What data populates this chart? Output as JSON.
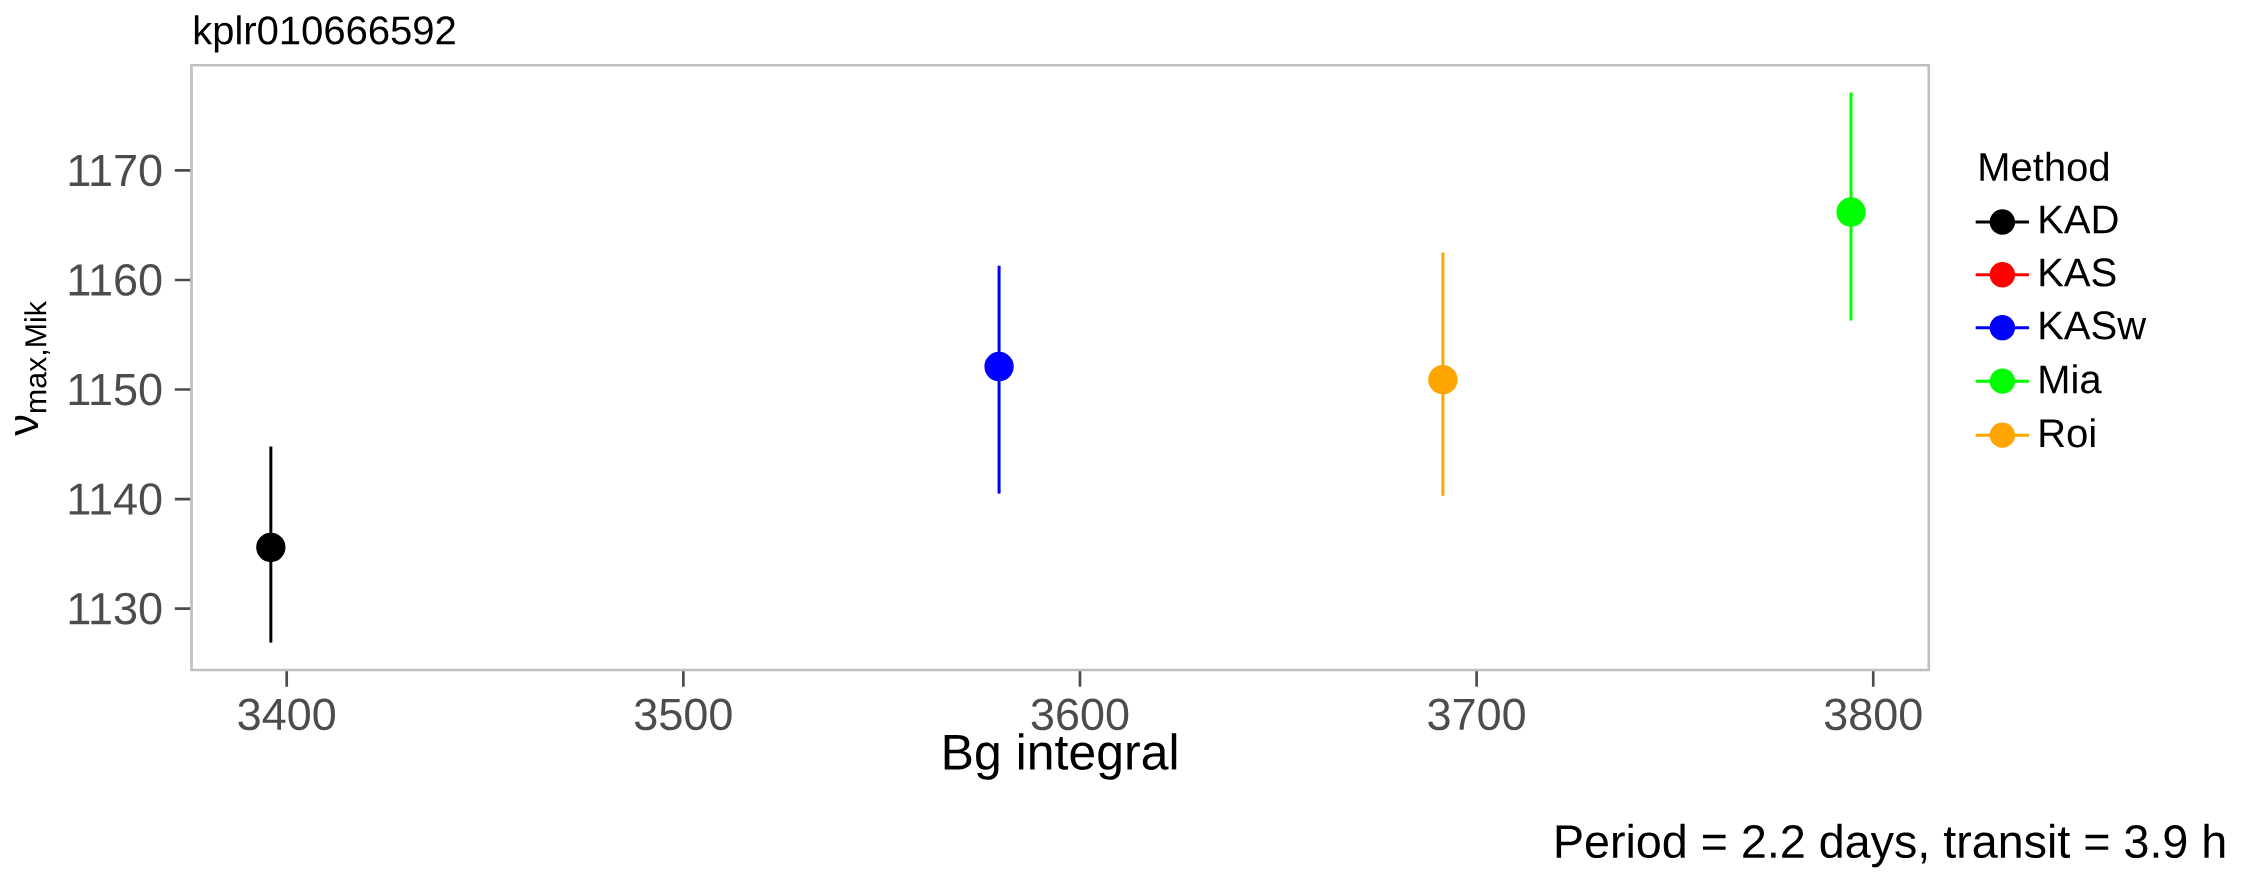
{
  "chart_data": {
    "type": "scatter",
    "title": "kplr010666592",
    "xlabel": "Bg integral",
    "ylabel": "ν$_{max,Mik}$",
    "legend_title": "Method",
    "xlim": [
      3376,
      3814
    ],
    "ylim": [
      1124.4,
      1179.6
    ],
    "xticks": [
      3400,
      3500,
      3600,
      3700,
      3800
    ],
    "yticks": [
      1130,
      1140,
      1150,
      1160,
      1170
    ],
    "series": [
      {
        "name": "KAD",
        "color": "#000000",
        "x": [
          3396
        ],
        "values": [
          1135.6
        ],
        "errors": [
          [
            1126.9,
            1144.8
          ]
        ]
      },
      {
        "name": "KAS",
        "color": "#ff0000"
      },
      {
        "name": "KASw",
        "color": "#0000ff",
        "x": [
          3579.6
        ],
        "values": [
          1152.1
        ],
        "errors": [
          [
            1140.5,
            1161.3
          ]
        ]
      },
      {
        "name": "Mia",
        "color": "#00ff00",
        "x": [
          3794.4
        ],
        "values": [
          1166.2
        ],
        "errors": [
          [
            1156.3,
            1177.1
          ]
        ]
      },
      {
        "name": "Roi",
        "color": "#ffa500",
        "x": [
          3691.5
        ],
        "values": [
          1150.9
        ],
        "errors": [
          [
            1140.3,
            1162.5
          ]
        ]
      }
    ],
    "marker": "circle",
    "legend": "right",
    "annotations": [
      "Period = 2.2 days, transit = 3.9 h"
    ]
  }
}
